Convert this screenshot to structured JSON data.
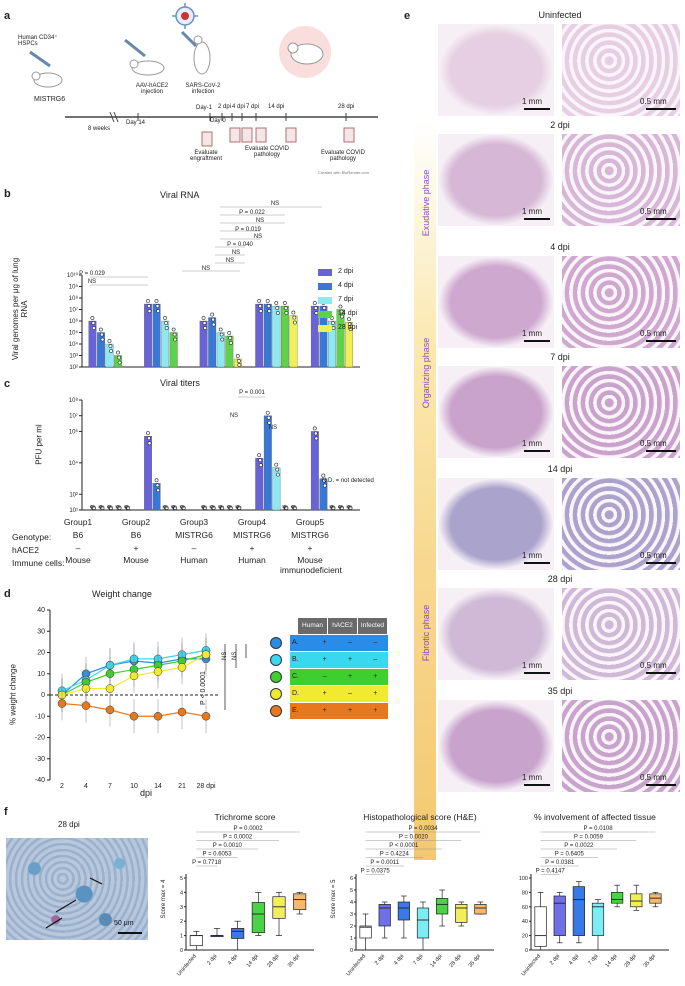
{
  "panel_labels": {
    "a": "a",
    "b": "b",
    "c": "c",
    "d": "d",
    "e": "e",
    "f": "f"
  },
  "panel_a": {
    "hspc_label": "Human CD34⁺ HSPCs",
    "mouse_label": "MISTRG6",
    "aav_label": "AAV-hACE2 injection",
    "sars_label": "SARS-CoV-2 infection",
    "weeks_label": "8 weeks",
    "day14": "Day 14",
    "day_minus1": "Day-1",
    "day0": "Day 0",
    "dpi_ticks": [
      "2 dpi",
      "4 dpi",
      "7 dpi",
      "14 dpi",
      "28 dpi"
    ],
    "eval_engraftment": "Evaluate engraftment",
    "eval_covid1": "Evaluate COVID pathology",
    "eval_covid2": "Evaluate COVID pathology",
    "credit": "Created with BioRender.com"
  },
  "panel_b": {
    "title": "Viral RNA",
    "ylabel": "Viral genomes per μg of lung RNA",
    "yticks": [
      "10¹⁰",
      "10⁹",
      "10⁸",
      "10⁷",
      "10⁶",
      "10⁵",
      "10⁴",
      "10³",
      "10²"
    ],
    "stats": [
      "NS",
      "P = 0.022",
      "NS",
      "P = 0.019",
      "NS",
      "P = 0.040",
      "NS",
      "NS",
      "NS",
      "NS",
      "NS",
      "P = 0.029",
      "NS"
    ]
  },
  "panel_c": {
    "title": "Viral titers",
    "ylabel": "PFU per ml",
    "yticks": [
      "10⁸",
      "10⁷",
      "10⁶",
      "10⁴",
      "10²",
      "10¹"
    ],
    "stat_p": "P = 0.001",
    "ns": [
      "NS",
      "NS"
    ],
    "nd_note": "N.D. = not detected",
    "nd": "N.D."
  },
  "legend_bc": {
    "items": [
      "2 dpi",
      "4 dpi",
      "7 dpi",
      "14 dpi",
      "28 dpi"
    ],
    "colors": [
      "#6a63d8",
      "#3a78d8",
      "#8ee8f0",
      "#5fd24a",
      "#f2ee55"
    ]
  },
  "group_table": {
    "row_labels": [
      "Genotype:",
      "hACE2",
      "Immune cells:"
    ],
    "groups": [
      {
        "name": "Group1",
        "genotype": "B6",
        "hace2": "–",
        "immune": "Mouse"
      },
      {
        "name": "Group2",
        "genotype": "B6",
        "hace2": "+",
        "immune": "Mouse"
      },
      {
        "name": "Group3",
        "genotype": "MISTRG6",
        "hace2": "–",
        "immune": "Human"
      },
      {
        "name": "Group4",
        "genotype": "MISTRG6",
        "hace2": "+",
        "immune": "Human"
      },
      {
        "name": "Group5",
        "genotype": "MISTRG6",
        "hace2": "+",
        "immune": "Mouse immunodeficient"
      }
    ]
  },
  "panel_d": {
    "title": "Weight change",
    "xlabel": "dpi",
    "ylabel": "% weight change",
    "p_label": "P < 0.0001",
    "ns": [
      "NS",
      "NS"
    ],
    "table_headers": [
      "Human cells",
      "hACE2",
      "Infected"
    ],
    "table_rows": [
      {
        "id": "A.",
        "cells": "+",
        "hace2": "–",
        "infected": "–",
        "color": "#2b8ce8"
      },
      {
        "id": "B.",
        "cells": "+",
        "hace2": "+",
        "infected": "–",
        "color": "#38d8f0"
      },
      {
        "id": "C.",
        "cells": "–",
        "hace2": "+",
        "infected": "+",
        "color": "#3ecf2e"
      },
      {
        "id": "D.",
        "cells": "+",
        "hace2": "–",
        "infected": "+",
        "color": "#f2ea30"
      },
      {
        "id": "E.",
        "cells": "+",
        "hace2": "+",
        "infected": "+",
        "color": "#e8781e"
      }
    ]
  },
  "panel_e": {
    "rows": [
      "Uninfected",
      "2 dpi",
      "4 dpi",
      "7 dpi",
      "14 dpi",
      "28 dpi",
      "35 dpi"
    ],
    "phases": [
      "Exudative phase",
      "Organizing phase",
      "Fibrotic phase"
    ],
    "scale_left": "1 mm",
    "scale_right": "0.5 mm"
  },
  "panel_f": {
    "image_label": "28 dpi",
    "scale": "50 μm",
    "plots": [
      {
        "title": "Trichrome score",
        "ylabel": "Score max = 4",
        "stats": [
          "P = 0.0002",
          "P = 0.0002",
          "P = 0.0010",
          "P = 0.6053",
          "P = 0.7718"
        ]
      },
      {
        "title": "Histopathological score (H&E)",
        "ylabel": "Score max = 5",
        "stats": [
          "P = 0.0034",
          "P = 0.0020",
          "P < 0.0001",
          "P = 0.4224",
          "P = 0.0011",
          "P = 0.0375"
        ]
      },
      {
        "title": "% involvement of affected tissue",
        "ylabel": "",
        "stats": [
          "P = 0.0108",
          "P = 0.0059",
          "P = 0.0022",
          "P = 0.6405",
          "P = 0.0381",
          "P = 0.4147"
        ]
      }
    ]
  },
  "chart_data": [
    {
      "type": "bar",
      "title": "Viral RNA",
      "ylabel": "Viral genomes per μg of lung RNA",
      "yscale": "log",
      "ylim": [
        100,
        10000000000
      ],
      "categories": [
        "Group1",
        "Group2",
        "Group3",
        "Group4",
        "Group5"
      ],
      "series": [
        {
          "name": "2 dpi",
          "values": [
            1000000,
            30000000,
            1000000,
            30000000,
            20000000
          ]
        },
        {
          "name": "4 dpi",
          "values": [
            100000,
            30000000,
            2000000,
            30000000,
            20000000
          ]
        },
        {
          "name": "7 dpi",
          "values": [
            10000,
            1000000,
            100000,
            20000000,
            1000000
          ]
        },
        {
          "name": "14 dpi",
          "values": [
            1000,
            100000,
            50000,
            20000000,
            10000000
          ]
        },
        {
          "name": "28 dpi",
          "values": [
            null,
            null,
            500,
            3000000,
            800000
          ]
        }
      ]
    },
    {
      "type": "bar",
      "title": "Viral titers",
      "ylabel": "PFU per ml",
      "yscale": "log",
      "ylim": [
        10,
        100000000
      ],
      "categories": [
        "Group1",
        "Group2",
        "Group3",
        "Group4",
        "Group5"
      ],
      "series": [
        {
          "name": "2 dpi",
          "values": [
            10,
            500000,
            10,
            20000,
            1000000
          ]
        },
        {
          "name": "4 dpi",
          "values": [
            10,
            500,
            10,
            10000000,
            1000
          ]
        },
        {
          "name": "7 dpi",
          "values": [
            10,
            10,
            10,
            5000,
            10
          ]
        },
        {
          "name": "14 dpi",
          "values": [
            10,
            10,
            10,
            10,
            10
          ]
        },
        {
          "name": "28 dpi",
          "values": [
            10,
            10,
            10,
            10,
            10
          ]
        }
      ]
    },
    {
      "type": "line",
      "title": "Weight change",
      "xlabel": "dpi",
      "ylabel": "% weight change",
      "x": [
        "2",
        "4",
        "7",
        "10",
        "14",
        "21",
        "28"
      ],
      "ylim": [
        -40,
        40
      ],
      "series": [
        {
          "name": "A.",
          "values": [
            0,
            10,
            14,
            16,
            15,
            17,
            17
          ]
        },
        {
          "name": "B.",
          "values": [
            2,
            7,
            14,
            17,
            17,
            19,
            21
          ]
        },
        {
          "name": "C.",
          "values": [
            0,
            6,
            10,
            12,
            14,
            16,
            19
          ]
        },
        {
          "name": "D.",
          "values": [
            0,
            3,
            3,
            9,
            11,
            13,
            19
          ]
        },
        {
          "name": "E.",
          "values": [
            -4,
            -5,
            -7,
            -10,
            -10,
            -8,
            -10
          ]
        }
      ]
    },
    {
      "type": "box",
      "title": "Trichrome score",
      "categories": [
        "Uninfected",
        "2 dpi",
        "4 dpi",
        "14 dpi",
        "28 dpi",
        "35 dpi"
      ],
      "ylim": [
        0,
        5
      ],
      "boxes": [
        [
          0,
          0.3,
          1,
          1,
          1.3
        ],
        [
          1,
          1,
          1,
          1,
          1.5
        ],
        [
          0,
          0.8,
          1.3,
          1.5,
          2
        ],
        [
          1,
          1.2,
          2.5,
          3.3,
          4
        ],
        [
          1,
          2.2,
          3,
          3.7,
          4
        ],
        [
          2.5,
          2.8,
          3.5,
          3.9,
          4
        ]
      ]
    },
    {
      "type": "box",
      "title": "Histopathological score (H&E)",
      "categories": [
        "Uninfected",
        "2 dpi",
        "4 dpi",
        "7 dpi",
        "14 dpi",
        "28 dpi",
        "35 dpi"
      ],
      "ylim": [
        0,
        6
      ],
      "boxes": [
        [
          0,
          1,
          1.9,
          2,
          3
        ],
        [
          1,
          2,
          3.5,
          3.8,
          4
        ],
        [
          1,
          2.5,
          3.5,
          4,
          4.5
        ],
        [
          0,
          1,
          2.5,
          3.5,
          4
        ],
        [
          2,
          3,
          3.8,
          4.3,
          5
        ],
        [
          2,
          2.3,
          3.5,
          3.8,
          4
        ],
        [
          3,
          3,
          3.5,
          3.8,
          4
        ]
      ]
    },
    {
      "type": "box",
      "title": "% involvement of affected tissue",
      "categories": [
        "Uninfected",
        "2 dpi",
        "4 dpi",
        "7 dpi",
        "14 dpi",
        "28 dpi",
        "35 dpi"
      ],
      "ylim": [
        0,
        100
      ],
      "boxes": [
        [
          0,
          5,
          20,
          60,
          80
        ],
        [
          10,
          20,
          65,
          75,
          80
        ],
        [
          10,
          20,
          70,
          88,
          95
        ],
        [
          0,
          20,
          60,
          65,
          70
        ],
        [
          60,
          65,
          70,
          80,
          90
        ],
        [
          55,
          60,
          68,
          78,
          90
        ],
        [
          60,
          65,
          72,
          78,
          80
        ]
      ]
    }
  ]
}
